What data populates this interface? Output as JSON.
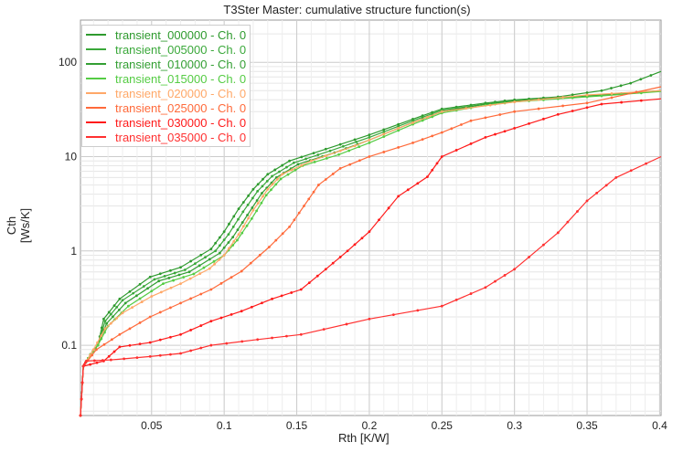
{
  "chart_data": {
    "type": "line",
    "title": "T3Ster Master: cumulative structure function(s)",
    "xlabel": "Rth  [K/W]",
    "ylabel": "Cth  [Ws/K]",
    "xlim": [
      0.001,
      0.401
    ],
    "ylim": [
      0.018,
      280
    ],
    "yscale": "log",
    "grid": true,
    "legend_position": "top-left",
    "xticks": [
      "0.05",
      "0.1",
      "0.15",
      "0.2",
      "0.25",
      "0.3",
      "0.35",
      "0.4"
    ],
    "xtick_values": [
      0.05,
      0.1,
      0.15,
      0.2,
      0.25,
      0.3,
      0.35,
      0.4
    ],
    "yticks": [
      "0.1",
      "1",
      "10",
      "100"
    ],
    "ytick_values": [
      0.1,
      1,
      10,
      100
    ],
    "series": [
      {
        "name": "transient_000000 - Ch. 0",
        "color": "#2e9a2e",
        "points": [
          [
            0.001,
            0.018
          ],
          [
            0.003,
            0.06
          ],
          [
            0.008,
            0.08
          ],
          [
            0.013,
            0.1
          ],
          [
            0.017,
            0.19
          ],
          [
            0.028,
            0.31
          ],
          [
            0.049,
            0.53
          ],
          [
            0.07,
            0.67
          ],
          [
            0.091,
            1.05
          ],
          [
            0.1,
            1.6
          ],
          [
            0.11,
            2.8
          ],
          [
            0.12,
            4.5
          ],
          [
            0.13,
            6.5
          ],
          [
            0.145,
            9
          ],
          [
            0.17,
            12
          ],
          [
            0.2,
            17
          ],
          [
            0.23,
            25
          ],
          [
            0.25,
            32
          ],
          [
            0.28,
            37
          ],
          [
            0.3,
            40
          ],
          [
            0.33,
            43
          ],
          [
            0.36,
            50
          ],
          [
            0.38,
            60
          ],
          [
            0.401,
            80
          ]
        ]
      },
      {
        "name": "transient_005000 - Ch. 0",
        "color": "#3aa83a",
        "points": [
          [
            0.001,
            0.018
          ],
          [
            0.003,
            0.06
          ],
          [
            0.008,
            0.08
          ],
          [
            0.013,
            0.1
          ],
          [
            0.018,
            0.18
          ],
          [
            0.03,
            0.3
          ],
          [
            0.052,
            0.5
          ],
          [
            0.073,
            0.63
          ],
          [
            0.094,
            1.0
          ],
          [
            0.103,
            1.5
          ],
          [
            0.113,
            2.6
          ],
          [
            0.123,
            4.3
          ],
          [
            0.133,
            6.2
          ],
          [
            0.148,
            8.6
          ],
          [
            0.173,
            11.5
          ],
          [
            0.2,
            16
          ],
          [
            0.23,
            24
          ],
          [
            0.25,
            31
          ],
          [
            0.28,
            36
          ],
          [
            0.3,
            39
          ],
          [
            0.33,
            42
          ],
          [
            0.36,
            45
          ],
          [
            0.401,
            50
          ]
        ]
      },
      {
        "name": "transient_010000 - Ch. 0",
        "color": "#339f33",
        "points": [
          [
            0.001,
            0.018
          ],
          [
            0.003,
            0.06
          ],
          [
            0.008,
            0.08
          ],
          [
            0.013,
            0.1
          ],
          [
            0.019,
            0.17
          ],
          [
            0.032,
            0.28
          ],
          [
            0.055,
            0.48
          ],
          [
            0.076,
            0.6
          ],
          [
            0.097,
            0.95
          ],
          [
            0.106,
            1.4
          ],
          [
            0.116,
            2.4
          ],
          [
            0.126,
            4.1
          ],
          [
            0.136,
            6
          ],
          [
            0.151,
            8.3
          ],
          [
            0.176,
            11
          ],
          [
            0.2,
            15
          ],
          [
            0.23,
            23
          ],
          [
            0.25,
            30
          ],
          [
            0.28,
            36
          ],
          [
            0.3,
            39
          ],
          [
            0.33,
            42
          ],
          [
            0.36,
            45
          ],
          [
            0.401,
            50
          ]
        ]
      },
      {
        "name": "transient_015000 - Ch. 0",
        "color": "#55cc44",
        "points": [
          [
            0.001,
            0.018
          ],
          [
            0.003,
            0.06
          ],
          [
            0.008,
            0.08
          ],
          [
            0.013,
            0.1
          ],
          [
            0.02,
            0.16
          ],
          [
            0.034,
            0.26
          ],
          [
            0.058,
            0.45
          ],
          [
            0.079,
            0.57
          ],
          [
            0.1,
            0.9
          ],
          [
            0.109,
            1.3
          ],
          [
            0.119,
            2.2
          ],
          [
            0.129,
            3.9
          ],
          [
            0.139,
            5.8
          ],
          [
            0.154,
            8
          ],
          [
            0.179,
            10.5
          ],
          [
            0.2,
            14
          ],
          [
            0.23,
            22
          ],
          [
            0.25,
            29
          ],
          [
            0.28,
            35
          ],
          [
            0.3,
            38
          ],
          [
            0.33,
            41
          ],
          [
            0.36,
            44
          ],
          [
            0.401,
            49
          ]
        ]
      },
      {
        "name": "transient_020000 - Ch. 0",
        "color": "#ffa868",
        "points": [
          [
            0.001,
            0.018
          ],
          [
            0.003,
            0.06
          ],
          [
            0.01,
            0.09
          ],
          [
            0.018,
            0.15
          ],
          [
            0.03,
            0.22
          ],
          [
            0.05,
            0.33
          ],
          [
            0.07,
            0.45
          ],
          [
            0.09,
            0.65
          ],
          [
            0.1,
            0.9
          ],
          [
            0.11,
            1.5
          ],
          [
            0.12,
            2.7
          ],
          [
            0.13,
            4.5
          ],
          [
            0.14,
            6.5
          ],
          [
            0.16,
            9
          ],
          [
            0.19,
            13
          ],
          [
            0.22,
            20
          ],
          [
            0.25,
            30
          ],
          [
            0.3,
            38
          ],
          [
            0.35,
            45
          ],
          [
            0.401,
            50
          ]
        ]
      },
      {
        "name": "transient_025000 - Ch. 0",
        "color": "#ff6a3a",
        "points": [
          [
            0.001,
            0.018
          ],
          [
            0.003,
            0.06
          ],
          [
            0.012,
            0.09
          ],
          [
            0.028,
            0.13
          ],
          [
            0.049,
            0.2
          ],
          [
            0.07,
            0.28
          ],
          [
            0.091,
            0.39
          ],
          [
            0.112,
            0.61
          ],
          [
            0.131,
            1.1
          ],
          [
            0.145,
            1.8
          ],
          [
            0.155,
            3
          ],
          [
            0.165,
            5
          ],
          [
            0.18,
            7.5
          ],
          [
            0.2,
            10
          ],
          [
            0.23,
            14
          ],
          [
            0.25,
            18
          ],
          [
            0.27,
            24
          ],
          [
            0.3,
            30
          ],
          [
            0.35,
            37
          ],
          [
            0.401,
            55
          ]
        ]
      },
      {
        "name": "transient_030000 - Ch. 0",
        "color": "#ff1a1a",
        "points": [
          [
            0.001,
            0.018
          ],
          [
            0.003,
            0.06
          ],
          [
            0.017,
            0.068
          ],
          [
            0.028,
            0.096
          ],
          [
            0.049,
            0.107
          ],
          [
            0.07,
            0.13
          ],
          [
            0.091,
            0.18
          ],
          [
            0.112,
            0.23
          ],
          [
            0.133,
            0.31
          ],
          [
            0.153,
            0.39
          ],
          [
            0.17,
            0.64
          ],
          [
            0.185,
            1
          ],
          [
            0.2,
            1.6
          ],
          [
            0.22,
            3.8
          ],
          [
            0.24,
            6.1
          ],
          [
            0.25,
            10
          ],
          [
            0.28,
            16
          ],
          [
            0.3,
            20
          ],
          [
            0.33,
            28
          ],
          [
            0.36,
            36
          ],
          [
            0.401,
            41
          ]
        ]
      },
      {
        "name": "transient_035000 - Ch. 0",
        "color": "#ff3030",
        "points": [
          [
            0.001,
            0.018
          ],
          [
            0.003,
            0.06
          ],
          [
            0.005,
            0.068
          ],
          [
            0.022,
            0.07
          ],
          [
            0.049,
            0.076
          ],
          [
            0.07,
            0.082
          ],
          [
            0.091,
            0.1
          ],
          [
            0.123,
            0.115
          ],
          [
            0.153,
            0.13
          ],
          [
            0.2,
            0.19
          ],
          [
            0.25,
            0.26
          ],
          [
            0.28,
            0.41
          ],
          [
            0.3,
            0.64
          ],
          [
            0.33,
            1.56
          ],
          [
            0.35,
            3.4
          ],
          [
            0.37,
            6
          ],
          [
            0.401,
            10
          ]
        ]
      }
    ]
  }
}
